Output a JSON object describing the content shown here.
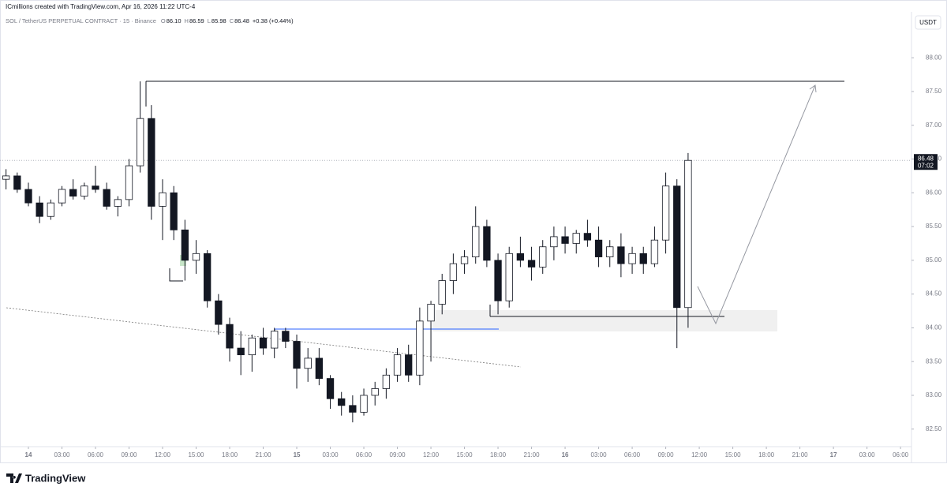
{
  "header": {
    "credit": "ICmillions created with TradingView.com, Apr 16, 2026 11:22 UTC-4",
    "symbol": "SOL / TetherUS PERPETUAL CONTRACT · 15 · Binance",
    "ohlc": [
      {
        "key": "O",
        "value": "86.10"
      },
      {
        "key": "H",
        "value": "86.59"
      },
      {
        "key": "L",
        "value": "85.98"
      },
      {
        "key": "C",
        "value": "86.48"
      }
    ],
    "change": "+0.38 (+0.44%)",
    "currency": "USDT"
  },
  "brand": "TradingView",
  "chart_data": {
    "type": "candlestick",
    "x": [
      -2,
      -1,
      0,
      1,
      2,
      3,
      4,
      5,
      6,
      7,
      8,
      9,
      10,
      11,
      12,
      13,
      14,
      15,
      16,
      17,
      18,
      19,
      20,
      21,
      22,
      23,
      24,
      25,
      26,
      27,
      28,
      29,
      30,
      31,
      32,
      33,
      34,
      35,
      36,
      37,
      38,
      39,
      40,
      41,
      42,
      43,
      44,
      45,
      46,
      47,
      48,
      49,
      50,
      51,
      52,
      53,
      54,
      55,
      56,
      57,
      58,
      59
    ],
    "open": [
      86.2,
      86.25,
      86.05,
      85.85,
      85.65,
      85.85,
      86.05,
      85.95,
      86.1,
      86.05,
      85.8,
      85.9,
      86.4,
      87.1,
      85.8,
      86.0,
      85.45,
      85.0,
      85.1,
      84.4,
      84.05,
      83.7,
      83.6,
      83.85,
      83.7,
      83.95,
      83.8,
      83.4,
      83.55,
      83.25,
      82.95,
      82.85,
      82.75,
      83.0,
      83.1,
      83.3,
      83.6,
      83.3,
      84.1,
      84.35,
      84.7,
      84.95,
      85.05,
      85.5,
      85.0,
      84.4,
      85.1,
      85.0,
      84.9,
      85.2,
      85.35,
      85.25,
      85.4,
      85.3,
      85.05,
      85.2,
      84.95,
      85.1,
      84.95,
      85.3,
      86.1,
      84.3
    ],
    "high": [
      86.35,
      86.3,
      86.15,
      85.95,
      85.9,
      86.1,
      86.2,
      86.15,
      86.4,
      86.15,
      85.95,
      86.5,
      87.65,
      87.3,
      86.2,
      86.1,
      85.6,
      85.3,
      85.15,
      84.5,
      84.15,
      83.95,
      83.9,
      84.0,
      84.0,
      84.0,
      83.9,
      83.7,
      83.7,
      83.3,
      83.05,
      83.0,
      83.1,
      83.2,
      83.4,
      83.7,
      83.75,
      84.3,
      84.4,
      84.8,
      85.1,
      85.15,
      85.8,
      85.6,
      85.1,
      85.2,
      85.35,
      85.2,
      85.3,
      85.5,
      85.5,
      85.45,
      85.6,
      85.5,
      85.3,
      85.4,
      85.2,
      85.2,
      85.5,
      86.3,
      86.2,
      86.59
    ],
    "low": [
      86.05,
      86.0,
      85.8,
      85.55,
      85.6,
      85.8,
      85.9,
      85.9,
      86.0,
      85.75,
      85.65,
      85.8,
      86.3,
      85.6,
      85.3,
      85.3,
      84.7,
      84.8,
      84.3,
      83.9,
      83.5,
      83.3,
      83.35,
      83.6,
      83.55,
      83.7,
      83.1,
      83.2,
      83.15,
      82.8,
      82.7,
      82.6,
      82.7,
      82.85,
      82.95,
      83.2,
      83.2,
      83.15,
      83.5,
      84.2,
      84.5,
      84.8,
      84.95,
      84.9,
      84.2,
      84.3,
      84.9,
      84.7,
      84.8,
      85.0,
      85.1,
      85.1,
      85.2,
      84.9,
      84.9,
      84.75,
      84.8,
      84.8,
      84.9,
      85.1,
      83.7,
      84.0
    ],
    "close": [
      86.25,
      86.05,
      85.85,
      85.65,
      85.85,
      86.05,
      85.95,
      86.1,
      86.05,
      85.8,
      85.9,
      86.4,
      87.1,
      85.8,
      86.0,
      85.45,
      85.0,
      85.1,
      84.4,
      84.05,
      83.7,
      83.6,
      83.85,
      83.7,
      83.95,
      83.8,
      83.4,
      83.55,
      83.25,
      82.95,
      82.85,
      82.75,
      83.0,
      83.1,
      83.3,
      83.6,
      83.3,
      84.1,
      84.35,
      84.7,
      84.95,
      85.05,
      85.5,
      85.0,
      84.4,
      85.1,
      85.0,
      84.9,
      85.2,
      85.35,
      85.25,
      85.4,
      85.3,
      85.05,
      85.2,
      84.95,
      85.1,
      84.95,
      85.3,
      86.1,
      84.3,
      86.48
    ],
    "up_color": "#ffffff",
    "down_color": "#131722",
    "edge_color": "#131722",
    "xlim": [
      -2.54,
      78.98
    ],
    "xticks": [
      {
        "value": 0,
        "label": "14"
      },
      {
        "value": 3,
        "label": "03:00"
      },
      {
        "value": 6,
        "label": "06:00"
      },
      {
        "value": 9,
        "label": "09:00"
      },
      {
        "value": 12,
        "label": "12:00"
      },
      {
        "value": 15,
        "label": "15:00"
      },
      {
        "value": 18,
        "label": "18:00"
      },
      {
        "value": 21,
        "label": "21:00"
      },
      {
        "value": 24,
        "label": "15"
      },
      {
        "value": 27,
        "label": "03:00"
      },
      {
        "value": 30,
        "label": "06:00"
      },
      {
        "value": 33,
        "label": "09:00"
      },
      {
        "value": 36,
        "label": "12:00"
      },
      {
        "value": 39,
        "label": "15:00"
      },
      {
        "value": 42,
        "label": "18:00"
      },
      {
        "value": 45,
        "label": "21:00"
      },
      {
        "value": 48,
        "label": "16"
      },
      {
        "value": 51,
        "label": "03:00"
      },
      {
        "value": 54,
        "label": "06:00"
      },
      {
        "value": 57,
        "label": "09:00"
      },
      {
        "value": 60,
        "label": "12:00"
      },
      {
        "value": 63,
        "label": "15:00"
      },
      {
        "value": 66,
        "label": "18:00"
      },
      {
        "value": 69,
        "label": "21:00"
      },
      {
        "value": 72,
        "label": "17"
      },
      {
        "value": 75,
        "label": "03:00"
      },
      {
        "value": 78,
        "label": "06:00"
      }
    ],
    "ylim": [
      82.24,
      88.68
    ],
    "yticks": [
      {
        "value": 82.5,
        "label": "82.50"
      },
      {
        "value": 83,
        "label": "83.00"
      },
      {
        "value": 83.5,
        "label": "83.50"
      },
      {
        "value": 84,
        "label": "84.00"
      },
      {
        "value": 84.5,
        "label": "84.50"
      },
      {
        "value": 85,
        "label": "85.00"
      },
      {
        "value": 85.5,
        "label": "85.50"
      },
      {
        "value": 86,
        "label": "86.00"
      },
      {
        "value": 86.5,
        "label": "86.50"
      },
      {
        "value": 87,
        "label": "87.00"
      },
      {
        "value": 87.5,
        "label": "87.50"
      },
      {
        "value": 88,
        "label": "88.00"
      }
    ],
    "last_price": {
      "value": 86.48,
      "label": "86.48"
    },
    "countdown": "07:02"
  }
}
